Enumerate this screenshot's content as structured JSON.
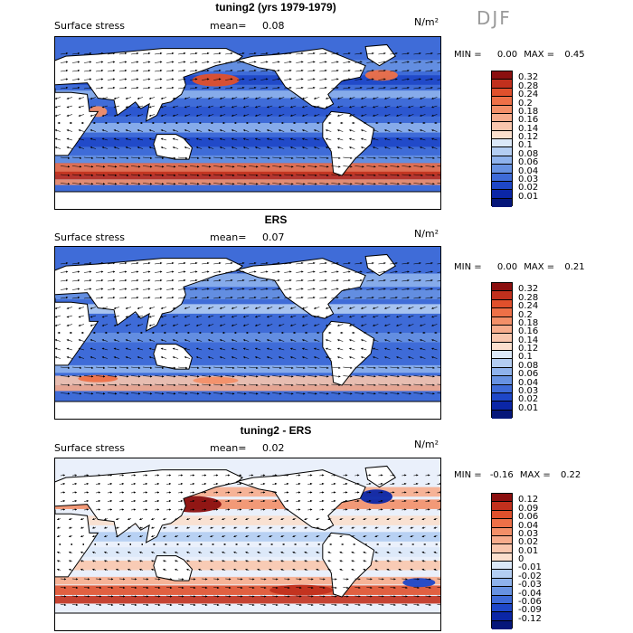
{
  "season": "DJF",
  "panels": [
    {
      "id": "p1",
      "title": "tuning2 (yrs 1979-1979)",
      "variable": "Surface stress",
      "mean_label": "mean=",
      "mean_value": "0.08",
      "units": "N/m²",
      "min_label": "MIN =",
      "min_value": "0.00",
      "max_label": "MAX =",
      "max_value": "0.45",
      "colorbar_labels": [
        "0.32",
        "0.28",
        "0.24",
        "0.2",
        "0.18",
        "0.16",
        "0.14",
        "0.12",
        "0.1",
        "0.08",
        "0.06",
        "0.04",
        "0.03",
        "0.02",
        "0.01"
      ],
      "colorbar_colors": [
        "#8b0f0f",
        "#c1301d",
        "#e0502c",
        "#ee7047",
        "#f38f68",
        "#f7ac8c",
        "#f9c6ad",
        "#fbdfcd",
        "#dbe8f8",
        "#b3cdf2",
        "#8eb2ec",
        "#6792e2",
        "#3e6bd8",
        "#1e47c8",
        "#0b26a6",
        "#06177a"
      ],
      "variant": "model"
    },
    {
      "id": "p2",
      "title": "ERS",
      "variable": "Surface stress",
      "mean_label": "mean=",
      "mean_value": "0.07",
      "units": "N/m²",
      "min_label": "MIN =",
      "min_value": "0.00",
      "max_label": "MAX =",
      "max_value": "0.21",
      "colorbar_labels": [
        "0.32",
        "0.28",
        "0.24",
        "0.2",
        "0.18",
        "0.16",
        "0.14",
        "0.12",
        "0.1",
        "0.08",
        "0.06",
        "0.04",
        "0.03",
        "0.02",
        "0.01"
      ],
      "colorbar_colors": [
        "#8b0f0f",
        "#c1301d",
        "#e0502c",
        "#ee7047",
        "#f38f68",
        "#f7ac8c",
        "#f9c6ad",
        "#fbdfcd",
        "#dbe8f8",
        "#b3cdf2",
        "#8eb2ec",
        "#6792e2",
        "#3e6bd8",
        "#1e47c8",
        "#0b26a6",
        "#06177a"
      ],
      "variant": "obs"
    },
    {
      "id": "p3",
      "title": "tuning2 - ERS",
      "variable": "Surface stress",
      "mean_label": "mean=",
      "mean_value": "0.02",
      "units": "N/m²",
      "min_label": "MIN =",
      "min_value": "-0.16",
      "max_label": "MAX =",
      "max_value": "0.22",
      "colorbar_labels": [
        "0.12",
        "0.09",
        "0.06",
        "0.04",
        "0.03",
        "0.02",
        "0.01",
        "0",
        "-0.01",
        "-0.02",
        "-0.03",
        "-0.04",
        "-0.06",
        "-0.09",
        "-0.12"
      ],
      "colorbar_colors": [
        "#8b0f0f",
        "#c1301d",
        "#e0502c",
        "#ee7047",
        "#f38f68",
        "#f7ac8c",
        "#f9c6ad",
        "#fbdfcd",
        "#dbe8f8",
        "#b3cdf2",
        "#8eb2ec",
        "#6792e2",
        "#3e6bd8",
        "#1e47c8",
        "#0b26a6",
        "#06177a"
      ],
      "variant": "diff"
    }
  ]
}
